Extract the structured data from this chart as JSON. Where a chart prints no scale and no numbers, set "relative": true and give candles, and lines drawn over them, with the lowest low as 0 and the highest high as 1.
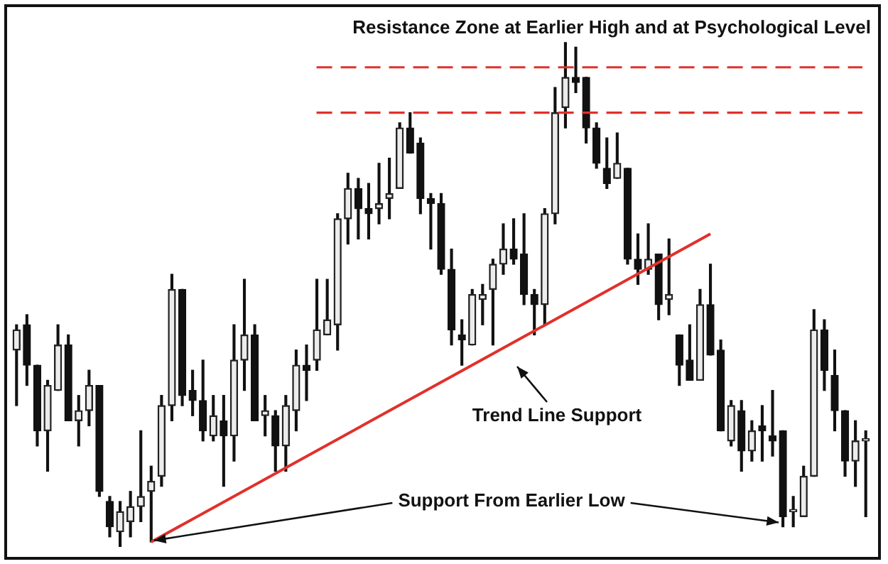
{
  "chart_data": {
    "type": "candlestick",
    "title": "Resistance Zone at Earlier High and at Psychological Level",
    "relative": true,
    "legend": false,
    "categories": [
      null,
      null,
      null,
      null,
      null,
      null,
      null,
      null,
      null,
      null,
      null,
      null,
      null,
      null,
      null,
      null,
      null,
      null,
      null,
      null,
      null,
      null,
      null,
      null,
      null,
      null,
      null,
      null,
      null,
      null,
      null,
      null,
      null,
      null,
      null,
      null,
      null,
      null,
      null,
      null,
      null,
      null,
      null,
      null,
      null,
      null,
      null,
      null,
      null,
      null,
      null,
      null,
      null,
      null,
      null,
      null,
      null,
      null,
      null,
      null,
      null,
      null,
      null,
      null,
      null,
      null,
      null,
      null,
      null,
      null,
      null,
      null,
      null,
      null,
      null,
      null,
      null,
      null,
      null,
      null,
      null,
      null,
      null
    ],
    "ohlc": [
      [
        0.39,
        0.44,
        0.28,
        0.43
      ],
      [
        0.44,
        0.46,
        0.32,
        0.36
      ],
      [
        0.36,
        0.36,
        0.2,
        0.23
      ],
      [
        0.23,
        0.33,
        0.15,
        0.32
      ],
      [
        0.31,
        0.44,
        0.31,
        0.4
      ],
      [
        0.4,
        0.42,
        0.25,
        0.25
      ],
      [
        0.25,
        0.3,
        0.2,
        0.27
      ],
      [
        0.27,
        0.35,
        0.24,
        0.32
      ],
      [
        0.32,
        0.32,
        0.1,
        0.11
      ],
      [
        0.09,
        0.1,
        0.02,
        0.04
      ],
      [
        0.03,
        0.09,
        0,
        0.07
      ],
      [
        0.05,
        0.11,
        0.02,
        0.08
      ],
      [
        0.08,
        0.23,
        0.05,
        0.1
      ],
      [
        0.11,
        0.16,
        0.01,
        0.13
      ],
      [
        0.14,
        0.3,
        0.12,
        0.28
      ],
      [
        0.28,
        0.54,
        0.25,
        0.51
      ],
      [
        0.51,
        0.51,
        0.28,
        0.3
      ],
      [
        0.31,
        0.35,
        0.26,
        0.29
      ],
      [
        0.29,
        0.37,
        0.21,
        0.23
      ],
      [
        0.22,
        0.3,
        0.21,
        0.26
      ],
      [
        0.25,
        0.3,
        0.12,
        0.22
      ],
      [
        0.22,
        0.44,
        0.17,
        0.37
      ],
      [
        0.37,
        0.53,
        0.31,
        0.42
      ],
      [
        0.42,
        0.44,
        0.25,
        0.25
      ],
      [
        0.26,
        0.3,
        0.22,
        0.27
      ],
      [
        0.26,
        0.27,
        0.15,
        0.2
      ],
      [
        0.2,
        0.3,
        0.15,
        0.28
      ],
      [
        0.27,
        0.39,
        0.23,
        0.36
      ],
      [
        0.36,
        0.4,
        0.29,
        0.35
      ],
      [
        0.37,
        0.53,
        0.35,
        0.43
      ],
      [
        0.42,
        0.53,
        0.42,
        0.45
      ],
      [
        0.44,
        0.66,
        0.39,
        0.65
      ],
      [
        0.65,
        0.74,
        0.6,
        0.71
      ],
      [
        0.71,
        0.73,
        0.61,
        0.67
      ],
      [
        0.67,
        0.72,
        0.61,
        0.66
      ],
      [
        0.67,
        0.76,
        0.64,
        0.68
      ],
      [
        0.69,
        0.77,
        0.65,
        0.7
      ],
      [
        0.71,
        0.84,
        0.71,
        0.83
      ],
      [
        0.83,
        0.86,
        0.78,
        0.78
      ],
      [
        0.8,
        0.81,
        0.66,
        0.69
      ],
      [
        0.69,
        0.7,
        0.59,
        0.68
      ],
      [
        0.68,
        0.7,
        0.54,
        0.55
      ],
      [
        0.55,
        0.59,
        0.4,
        0.43
      ],
      [
        0.42,
        0.45,
        0.36,
        0.41
      ],
      [
        0.4,
        0.51,
        0.4,
        0.5
      ],
      [
        0.49,
        0.52,
        0.44,
        0.5
      ],
      [
        0.51,
        0.57,
        0.4,
        0.56
      ],
      [
        0.56,
        0.64,
        0.54,
        0.59
      ],
      [
        0.59,
        0.65,
        0.56,
        0.57
      ],
      [
        0.58,
        0.66,
        0.48,
        0.5
      ],
      [
        0.5,
        0.51,
        0.42,
        0.48
      ],
      [
        0.48,
        0.67,
        0.44,
        0.66
      ],
      [
        0.66,
        0.91,
        0.64,
        0.86
      ],
      [
        0.87,
        1,
        0.83,
        0.93
      ],
      [
        0.93,
        0.99,
        0.9,
        0.92
      ],
      [
        0.93,
        0.93,
        0.8,
        0.83
      ],
      [
        0.83,
        0.84,
        0.75,
        0.76
      ],
      [
        0.75,
        0.81,
        0.71,
        0.72
      ],
      [
        0.73,
        0.82,
        0.73,
        0.76
      ],
      [
        0.75,
        0.75,
        0.56,
        0.57
      ],
      [
        0.57,
        0.62,
        0.52,
        0.55
      ],
      [
        0.55,
        0.64,
        0.54,
        0.57
      ],
      [
        0.58,
        0.58,
        0.45,
        0.48
      ],
      [
        0.49,
        0.61,
        0.46,
        0.5
      ],
      [
        0.42,
        0.42,
        0.32,
        0.36
      ],
      [
        0.37,
        0.44,
        0.33,
        0.33
      ],
      [
        0.33,
        0.51,
        0.33,
        0.48
      ],
      [
        0.48,
        0.56,
        0.38,
        0.38
      ],
      [
        0.39,
        0.41,
        0.23,
        0.23
      ],
      [
        0.21,
        0.29,
        0.2,
        0.28
      ],
      [
        0.27,
        0.29,
        0.15,
        0.19
      ],
      [
        0.19,
        0.25,
        0.17,
        0.23
      ],
      [
        0.24,
        0.28,
        0.17,
        0.23
      ],
      [
        0.22,
        0.31,
        0.18,
        0.21
      ],
      [
        0.23,
        0.23,
        0.04,
        0.06
      ],
      [
        0.07,
        0.1,
        0.04,
        0.07
      ],
      [
        0.06,
        0.16,
        0.06,
        0.14
      ],
      [
        0.14,
        0.47,
        0.14,
        0.43
      ],
      [
        0.43,
        0.45,
        0.31,
        0.35
      ],
      [
        0.34,
        0.39,
        0.23,
        0.27
      ],
      [
        0.27,
        0.27,
        0.14,
        0.17
      ],
      [
        0.17,
        0.25,
        0.12,
        0.21
      ],
      [
        0.21,
        0.23,
        0.06,
        0.21
      ]
    ],
    "series": [
      {
        "type": "line",
        "color": "#e0312b",
        "values": [
          null,
          null,
          null,
          null,
          null,
          null,
          null,
          null,
          null,
          null,
          null,
          null,
          null,
          0.01,
          null,
          null,
          null,
          null,
          null,
          null,
          null,
          null,
          null,
          null,
          null,
          null,
          null,
          null,
          null,
          null,
          null,
          null,
          null,
          null,
          null,
          null,
          null,
          null,
          null,
          null,
          null,
          null,
          null,
          null,
          null,
          null,
          null,
          null,
          null,
          null,
          null,
          null,
          null,
          null,
          null,
          null,
          null,
          null,
          null,
          null,
          null,
          null,
          null,
          null,
          null,
          null,
          null,
          0.62,
          null,
          null,
          null,
          null,
          null,
          null,
          null,
          null,
          null,
          null,
          null,
          null,
          null,
          null,
          null
        ]
      }
    ],
    "ref_lines": [
      {
        "axis": "y",
        "value": 0.95,
        "color": "#e0312b",
        "line_style": "dashed"
      },
      {
        "axis": "y",
        "value": 0.86,
        "color": "#e0312b",
        "line_style": "dashed"
      }
    ],
    "annotations": [
      "Trend Line Support",
      "Support From Earlier Low"
    ]
  }
}
